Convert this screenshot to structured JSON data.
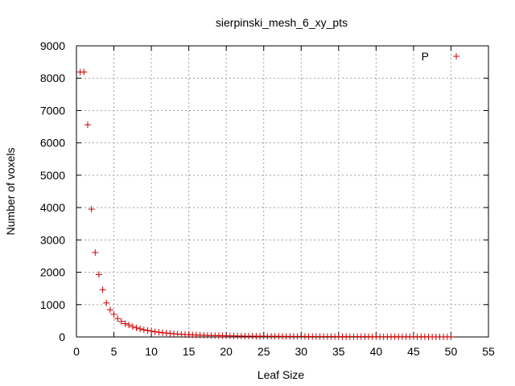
{
  "chart_data": {
    "type": "scatter",
    "title": "sierpinski_mesh_6_xy_pts",
    "xlabel": "Leaf Size",
    "ylabel": "Number of voxels",
    "xlim": [
      0,
      55
    ],
    "ylim": [
      0,
      9000
    ],
    "x_ticks": [
      "0",
      "5",
      "10",
      "15",
      "20",
      "25",
      "30",
      "35",
      "40",
      "45",
      "50",
      "55"
    ],
    "y_ticks": [
      "0",
      "1000",
      "2000",
      "3000",
      "4000",
      "5000",
      "6000",
      "7000",
      "8000",
      "9000"
    ],
    "grid": true,
    "legend": {
      "position": "top-right",
      "label": "P"
    },
    "series": [
      {
        "name": "P",
        "color": "#cc0000",
        "marker": "plus",
        "points": [
          [
            0.5,
            8190
          ],
          [
            1.0,
            8190
          ],
          [
            1.5,
            6560
          ],
          [
            2.0,
            3950
          ],
          [
            2.5,
            2610
          ],
          [
            3.0,
            1930
          ],
          [
            3.5,
            1460
          ],
          [
            4.0,
            1050
          ],
          [
            4.5,
            840
          ],
          [
            5.0,
            700
          ],
          [
            5.5,
            570
          ],
          [
            6.0,
            480
          ],
          [
            6.5,
            410
          ],
          [
            7.0,
            370
          ],
          [
            7.5,
            320
          ],
          [
            8.0,
            280
          ],
          [
            8.5,
            250
          ],
          [
            9.0,
            220
          ],
          [
            9.5,
            200
          ],
          [
            10.0,
            180
          ],
          [
            10.5,
            160
          ],
          [
            11.0,
            145
          ],
          [
            11.5,
            130
          ],
          [
            12.0,
            120
          ],
          [
            12.5,
            108
          ],
          [
            13.0,
            98
          ],
          [
            13.5,
            90
          ],
          [
            14.0,
            82
          ],
          [
            14.5,
            75
          ],
          [
            15.0,
            70
          ],
          [
            15.5,
            65
          ],
          [
            16.0,
            60
          ],
          [
            16.5,
            56
          ],
          [
            17.0,
            52
          ],
          [
            17.5,
            48
          ],
          [
            18.0,
            45
          ],
          [
            18.5,
            42
          ],
          [
            19.0,
            40
          ],
          [
            19.5,
            37
          ],
          [
            20.0,
            35
          ],
          [
            20.5,
            33
          ],
          [
            21.0,
            31
          ],
          [
            21.5,
            29
          ],
          [
            22.0,
            27
          ],
          [
            22.5,
            26
          ],
          [
            23.0,
            25
          ],
          [
            23.5,
            24
          ],
          [
            24.0,
            23
          ],
          [
            24.5,
            22
          ],
          [
            25.0,
            21
          ],
          [
            25.5,
            20
          ],
          [
            26.0,
            19
          ],
          [
            26.5,
            18
          ],
          [
            27.0,
            18
          ],
          [
            27.5,
            17
          ],
          [
            28.0,
            16
          ],
          [
            28.5,
            16
          ],
          [
            29.0,
            15
          ],
          [
            29.5,
            15
          ],
          [
            30.0,
            14
          ],
          [
            30.5,
            14
          ],
          [
            31.0,
            13
          ],
          [
            31.5,
            13
          ],
          [
            32.0,
            12
          ],
          [
            32.5,
            12
          ],
          [
            33.0,
            11
          ],
          [
            33.5,
            11
          ],
          [
            34.0,
            11
          ],
          [
            34.5,
            10
          ],
          [
            35.0,
            10
          ],
          [
            35.5,
            10
          ],
          [
            36.0,
            9
          ],
          [
            36.5,
            9
          ],
          [
            37.0,
            9
          ],
          [
            37.5,
            8
          ],
          [
            38.0,
            8
          ],
          [
            38.5,
            8
          ],
          [
            39.0,
            8
          ],
          [
            39.5,
            7
          ],
          [
            40.0,
            7
          ],
          [
            40.5,
            7
          ],
          [
            41.0,
            7
          ],
          [
            41.5,
            6
          ],
          [
            42.0,
            6
          ],
          [
            42.5,
            6
          ],
          [
            43.0,
            6
          ],
          [
            43.5,
            6
          ],
          [
            44.0,
            5
          ],
          [
            44.5,
            5
          ],
          [
            45.0,
            5
          ],
          [
            45.5,
            5
          ],
          [
            46.0,
            5
          ],
          [
            46.5,
            5
          ],
          [
            47.0,
            4
          ],
          [
            47.5,
            4
          ],
          [
            48.0,
            4
          ],
          [
            48.5,
            4
          ],
          [
            49.0,
            4
          ],
          [
            49.5,
            4
          ],
          [
            50.0,
            4
          ]
        ]
      }
    ]
  }
}
